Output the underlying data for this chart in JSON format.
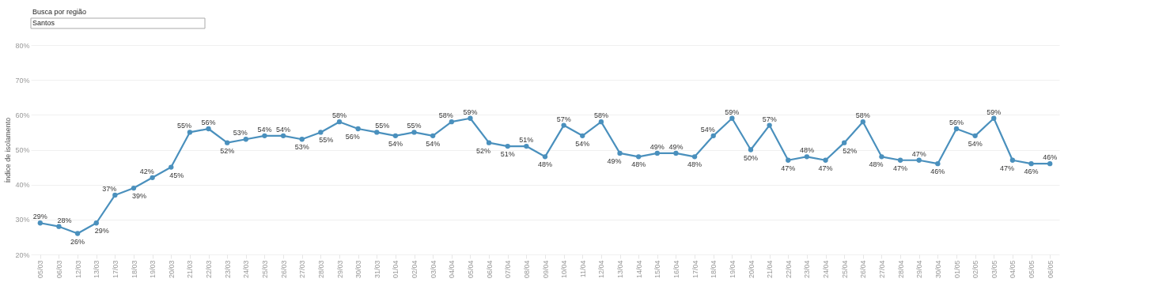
{
  "chart_data": {
    "type": "line",
    "annotations": [
      "Busca por região",
      "Santos"
    ],
    "ylabel": "Índice de isolamento",
    "categories": [
      "05/03",
      "06/03",
      "12/03",
      "13/03",
      "17/03",
      "18/03",
      "19/03",
      "20/03",
      "21/03",
      "22/03",
      "23/03",
      "24/03",
      "25/03",
      "26/03",
      "27/03",
      "28/03",
      "29/03",
      "30/03",
      "31/03",
      "01/04",
      "02/04",
      "03/04",
      "04/04",
      "05/04",
      "06/04",
      "07/04",
      "08/04",
      "09/04",
      "10/04",
      "11/04",
      "12/04",
      "13/04",
      "14/04",
      "15/04",
      "16/04",
      "17/04",
      "18/04",
      "19/04",
      "20/04",
      "21/04",
      "22/04",
      "23/04",
      "24/04",
      "25/04",
      "26/04",
      "27/04",
      "28/04",
      "29/04",
      "30/04",
      "01/05",
      "02/05",
      "03/05",
      "04/05",
      "05/05",
      "06/05"
    ],
    "series": [
      {
        "color": "#4a90bd",
        "values": [
          29,
          28,
          26,
          29,
          37,
          39,
          42,
          45,
          55,
          56,
          52,
          53,
          54,
          54,
          53,
          55,
          58,
          56,
          55,
          54,
          55,
          54,
          58,
          59,
          52,
          51,
          51,
          48,
          57,
          54,
          58,
          49,
          48,
          49,
          49,
          48,
          54,
          59,
          50,
          57,
          47,
          48,
          47,
          52,
          58,
          48,
          47,
          47,
          46,
          56,
          54,
          59,
          47,
          46,
          46
        ],
        "value_labels": [
          "29%",
          "28%",
          "26%",
          "29%",
          "37%",
          "39%",
          "42%",
          "45%",
          "55%",
          "56%",
          "52%",
          "53%",
          "54%",
          "54%",
          "53%",
          "55%",
          "58%",
          "56%",
          "55%",
          "54%",
          "55%",
          "54%",
          "58%",
          "59%",
          "52%",
          "51%",
          "51%",
          "48%",
          "57%",
          "54%",
          "58%",
          "49%",
          "48%",
          "49%",
          "49%",
          "48%",
          "54%",
          "59%",
          "50%",
          "57%",
          "47%",
          "48%",
          "47%",
          "52%",
          "58%",
          "48%",
          "47%",
          "47%",
          "46%",
          "56%",
          "54%",
          "59%",
          "47%",
          "46%",
          "46%"
        ]
      }
    ],
    "ylim": [
      20,
      80
    ],
    "yticks": [
      {
        "value": 20,
        "label": "20%"
      },
      {
        "value": 30,
        "label": "30%"
      },
      {
        "value": 40,
        "label": "40%"
      },
      {
        "value": 50,
        "label": "50%"
      },
      {
        "value": 60,
        "label": "60%"
      },
      {
        "value": 70,
        "label": "70%"
      },
      {
        "value": 80,
        "label": "80%"
      }
    ],
    "grid": "y",
    "marker": "circle",
    "line_style": "solid"
  }
}
